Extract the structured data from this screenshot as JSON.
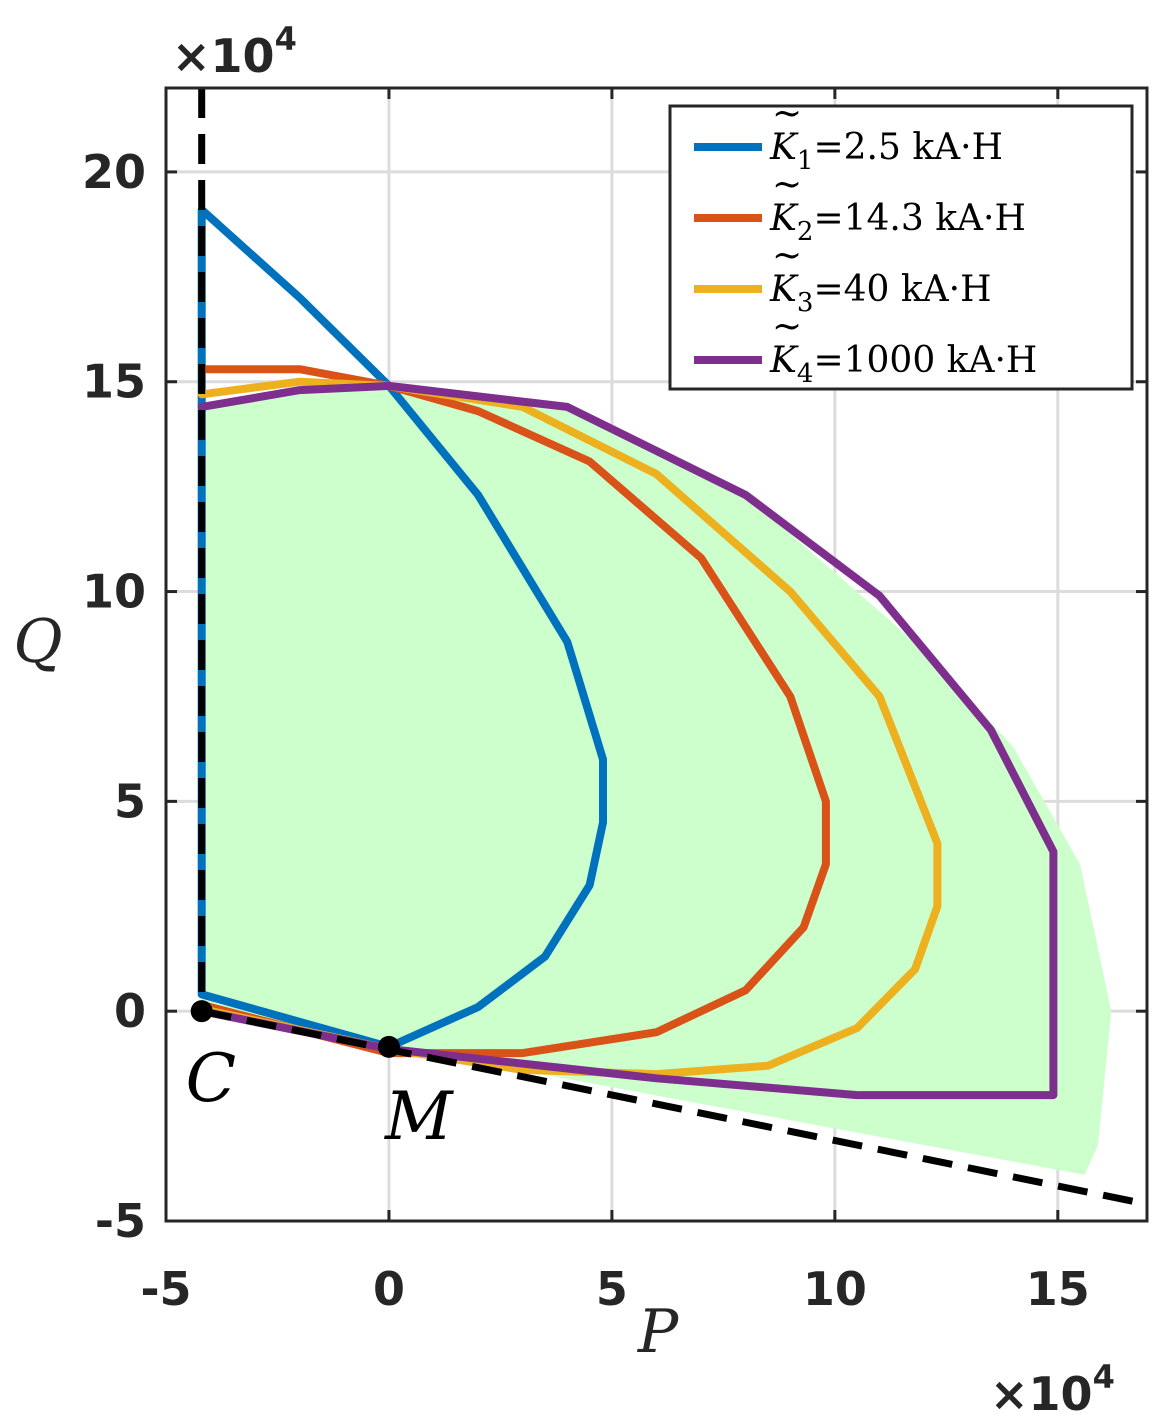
{
  "chart_data": {
    "type": "line",
    "title": "",
    "xlabel": "P",
    "ylabel": "Q",
    "xlim": [
      -5,
      17
    ],
    "ylim": [
      -5,
      22
    ],
    "x_exponent_label": "×10",
    "x_exponent_power": "4",
    "y_exponent_label": "×10",
    "y_exponent_power": "4",
    "xticks": [
      "-5",
      "0",
      "5",
      "10",
      "15"
    ],
    "yticks": [
      "-5",
      "0",
      "5",
      "10",
      "15",
      "20"
    ],
    "xtick_values": [
      -5,
      0,
      5,
      10,
      15
    ],
    "ytick_values": [
      -5,
      0,
      5,
      10,
      15,
      20
    ],
    "grid": true,
    "legend_position": "top-right",
    "points": [
      {
        "name": "C",
        "x": -4.2,
        "y": 0
      },
      {
        "name": "M",
        "x": 0,
        "y": -0.85
      }
    ],
    "boundary_lines": [
      {
        "style": "dashed",
        "color": "#000000",
        "points": [
          [
            -4.2,
            22
          ],
          [
            -4.2,
            0
          ]
        ]
      },
      {
        "style": "dashed",
        "color": "#000000",
        "points": [
          [
            -4.2,
            0
          ],
          [
            17,
            -4.6
          ]
        ]
      }
    ],
    "feasible_region": {
      "color": "#ccffcc",
      "points": [
        [
          -4.2,
          0
        ],
        [
          -4.2,
          14.5
        ],
        [
          -2,
          14.8
        ],
        [
          0,
          14.9
        ],
        [
          4,
          14.4
        ],
        [
          8,
          12.3
        ],
        [
          12,
          8.6
        ],
        [
          14,
          6.3
        ],
        [
          15.5,
          3.5
        ],
        [
          16.2,
          0
        ],
        [
          15.9,
          -3.2
        ],
        [
          15.6,
          -3.9
        ],
        [
          -4.2,
          0
        ]
      ]
    },
    "series": [
      {
        "name": "K̃₁=2.5 kA·H",
        "legend_main": "K",
        "legend_sub": "1",
        "legend_rest": "=2.5  kA·H",
        "color": "#0072bd",
        "points": [
          [
            -4.2,
            0.4
          ],
          [
            -4.2,
            19.1
          ],
          [
            -2,
            17
          ],
          [
            0,
            14.9
          ],
          [
            2,
            12.3
          ],
          [
            4,
            8.8
          ],
          [
            4.8,
            6
          ],
          [
            4.8,
            4.5
          ],
          [
            4.5,
            3
          ],
          [
            3.5,
            1.3
          ],
          [
            2,
            0.1
          ],
          [
            0,
            -0.85
          ],
          [
            -4.2,
            0.4
          ]
        ]
      },
      {
        "name": "K̃₂=14.3 kA·H",
        "legend_main": "K",
        "legend_sub": "2",
        "legend_rest": "=14.3  kA·H",
        "color": "#d95319",
        "points": [
          [
            -4.2,
            15.3
          ],
          [
            -2,
            15.3
          ],
          [
            0,
            14.9
          ],
          [
            2,
            14.3
          ],
          [
            4.5,
            13.1
          ],
          [
            7,
            10.8
          ],
          [
            9,
            7.5
          ],
          [
            9.8,
            5
          ],
          [
            9.8,
            3.5
          ],
          [
            9.3,
            2
          ],
          [
            8,
            0.5
          ],
          [
            6,
            -0.5
          ],
          [
            3,
            -1
          ],
          [
            0,
            -1
          ],
          [
            -4.2,
            0.15
          ]
        ]
      },
      {
        "name": "K̃₃=40 kA·H",
        "legend_main": "K",
        "legend_sub": "3",
        "legend_rest": "=40  kA·H",
        "color": "#edb120",
        "points": [
          [
            -4.2,
            14.7
          ],
          [
            -2,
            15
          ],
          [
            0,
            14.9
          ],
          [
            3,
            14.4
          ],
          [
            6,
            12.8
          ],
          [
            9,
            10
          ],
          [
            11,
            7.5
          ],
          [
            12.3,
            4
          ],
          [
            12.3,
            2.5
          ],
          [
            11.8,
            1
          ],
          [
            10.5,
            -0.4
          ],
          [
            8.5,
            -1.3
          ],
          [
            6,
            -1.5
          ],
          [
            3,
            -1.4
          ],
          [
            0,
            -0.9
          ],
          [
            -4.2,
            0.05
          ]
        ]
      },
      {
        "name": "K̃₄=1000 kA·H",
        "legend_main": "K",
        "legend_sub": "4",
        "legend_rest": "=1000  kA·H",
        "color": "#7e2f8e",
        "points": [
          [
            -4.2,
            14.4
          ],
          [
            -2,
            14.8
          ],
          [
            0,
            14.9
          ],
          [
            4,
            14.4
          ],
          [
            8,
            12.3
          ],
          [
            11,
            9.9
          ],
          [
            13.5,
            6.7
          ],
          [
            14.9,
            3.8
          ],
          [
            14.9,
            -2
          ],
          [
            10.5,
            -2
          ],
          [
            6,
            -1.6
          ],
          [
            0,
            -0.9
          ],
          [
            -4.2,
            0
          ]
        ]
      }
    ]
  }
}
